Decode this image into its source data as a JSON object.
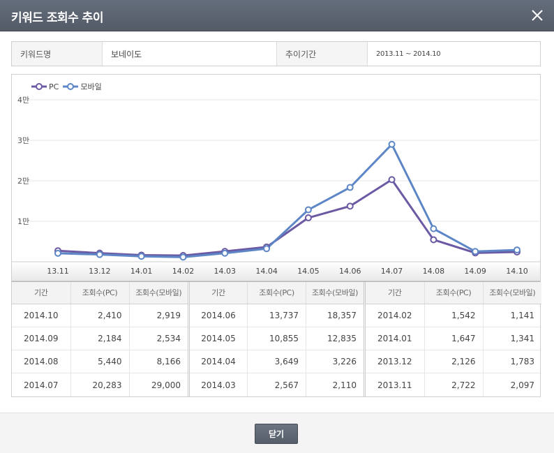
{
  "dialog": {
    "title": "키워드 조회수 추이",
    "close_button_label": "닫기"
  },
  "info": {
    "keyword_label": "키워드명",
    "keyword_value": "보네이도",
    "period_label": "추이기간",
    "period_value": "2013.11 ~ 2014.10"
  },
  "colors": {
    "pc": "#6b59a3",
    "mobile": "#5c86c6"
  },
  "chart_data": {
    "type": "line",
    "categories": [
      "13.11",
      "13.12",
      "14.01",
      "14.02",
      "14.03",
      "14.04",
      "14.05",
      "14.06",
      "14.07",
      "14.08",
      "14.09",
      "14.10"
    ],
    "series": [
      {
        "name": "PC",
        "values": [
          2722,
          2126,
          1647,
          1542,
          2567,
          3649,
          10855,
          13737,
          20283,
          5440,
          2184,
          2410
        ]
      },
      {
        "name": "모바일",
        "values": [
          2097,
          1783,
          1341,
          1141,
          2110,
          3226,
          12835,
          18357,
          29000,
          8166,
          2534,
          2919
        ]
      }
    ],
    "ylim": [
      0,
      40000
    ],
    "yticks": [
      {
        "value": 10000,
        "label": "1만"
      },
      {
        "value": 20000,
        "label": "2만"
      },
      {
        "value": 30000,
        "label": "3만"
      },
      {
        "value": 40000,
        "label": "4만"
      }
    ],
    "legend_position": "top-left",
    "grid": true
  },
  "table": {
    "headers": [
      "기간",
      "조회수(PC)",
      "조회수(모바일)"
    ],
    "groups": [
      [
        {
          "period": "2014.10",
          "pc": "2,410",
          "mobile": "2,919"
        },
        {
          "period": "2014.09",
          "pc": "2,184",
          "mobile": "2,534"
        },
        {
          "period": "2014.08",
          "pc": "5,440",
          "mobile": "8,166"
        },
        {
          "period": "2014.07",
          "pc": "20,283",
          "mobile": "29,000"
        }
      ],
      [
        {
          "period": "2014.06",
          "pc": "13,737",
          "mobile": "18,357"
        },
        {
          "period": "2014.05",
          "pc": "10,855",
          "mobile": "12,835"
        },
        {
          "period": "2014.04",
          "pc": "3,649",
          "mobile": "3,226"
        },
        {
          "period": "2014.03",
          "pc": "2,567",
          "mobile": "2,110"
        }
      ],
      [
        {
          "period": "2014.02",
          "pc": "1,542",
          "mobile": "1,141"
        },
        {
          "period": "2014.01",
          "pc": "1,647",
          "mobile": "1,341"
        },
        {
          "period": "2013.12",
          "pc": "2,126",
          "mobile": "1,783"
        },
        {
          "period": "2013.11",
          "pc": "2,722",
          "mobile": "2,097"
        }
      ]
    ]
  }
}
